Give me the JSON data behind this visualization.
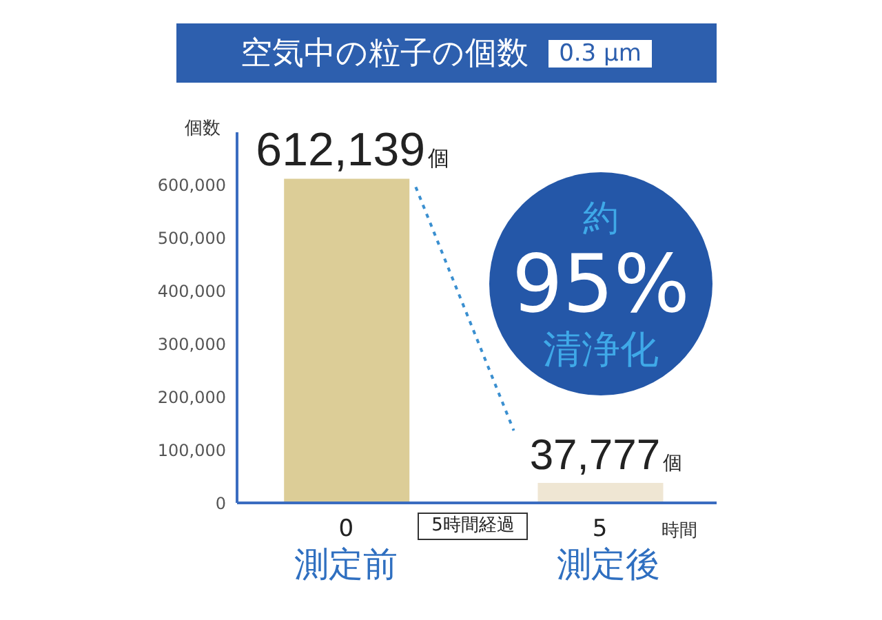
{
  "chart_data": {
    "type": "bar",
    "title": "空気中の粒子の個数",
    "subtitle": "0.3 μm",
    "xlabel": "時間",
    "ylabel": "個数",
    "x": [
      0,
      5
    ],
    "values": [
      612139,
      37777
    ],
    "colors": [
      "#dccd97",
      "#efe6d3"
    ],
    "value_labels": [
      "612,139個",
      "37,777個"
    ],
    "xlim": [
      -2.15,
      7.3
    ],
    "xticks": [
      0,
      5
    ],
    "ylim": [
      0,
      700000
    ],
    "yticks": [
      0,
      {
        "value": 100000,
        "label": "100,000"
      },
      {
        "value": 200000,
        "label": "200,000"
      },
      {
        "value": 300000,
        "label": "300,000"
      },
      {
        "value": 400000,
        "label": "400,000"
      },
      {
        "value": 500000,
        "label": "500,000"
      },
      {
        "value": 600000,
        "label": "600,000"
      }
    ],
    "annotations": [
      "測定前",
      "測定後",
      "5時間経過",
      "約",
      "95%",
      "清浄化"
    ]
  }
}
